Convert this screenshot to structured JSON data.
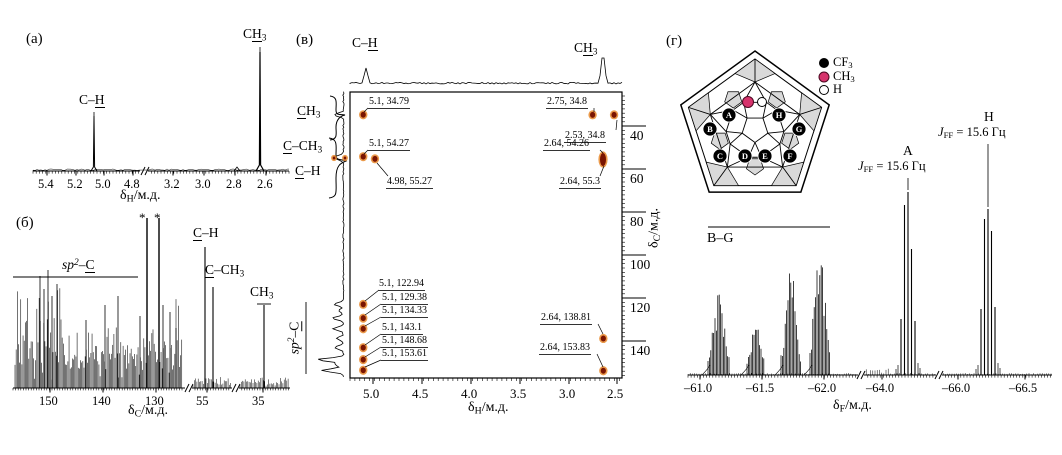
{
  "figure": {
    "panel_a_letter": "(а)",
    "panel_b_letter": "(б)",
    "panel_v_letter": "(в)",
    "panel_g_letter": "(г)"
  },
  "labels": {
    "delta_H": [
      [
        "δ"
      ],
      [
        "H",
        "s"
      ],
      [
        "/м.д."
      ]
    ],
    "delta_C": [
      [
        "δ"
      ],
      [
        "C",
        "s"
      ],
      [
        "/м.д."
      ]
    ],
    "delta_F": [
      [
        "δ"
      ],
      [
        "F",
        "s"
      ],
      [
        "/м.д."
      ]
    ],
    "a_CH": [
      [
        "C–"
      ],
      [
        "H",
        "u"
      ]
    ],
    "a_CH3": [
      [
        "C"
      ],
      [
        "H",
        "u"
      ],
      [
        "3",
        "s"
      ]
    ],
    "b_sp2C": [
      [
        "sp",
        "i"
      ],
      [
        "2",
        "p i"
      ],
      [
        "–"
      ],
      [
        "C",
        "u"
      ]
    ],
    "b_CH": [
      [
        "C",
        "u"
      ],
      [
        "–H"
      ]
    ],
    "b_CCH3": [
      [
        "C",
        "u"
      ],
      [
        "–CH"
      ],
      [
        "3",
        "s"
      ]
    ],
    "b_CH3": [
      [
        "CH"
      ],
      [
        "3",
        "s"
      ]
    ],
    "star": "*",
    "v_top_CH": [
      [
        "C–"
      ],
      [
        "H",
        "u"
      ]
    ],
    "v_top_CH3": [
      [
        "C"
      ],
      [
        "H",
        "u"
      ],
      [
        "3",
        "s"
      ]
    ],
    "v_left_CH3": [
      [
        "C",
        "u"
      ],
      [
        "H"
      ],
      [
        "3",
        "s"
      ]
    ],
    "v_left_CCH3": [
      [
        "C",
        "u"
      ],
      [
        "–CH"
      ],
      [
        "3",
        "s"
      ]
    ],
    "v_left_CH": [
      [
        "C",
        "u"
      ],
      [
        "–H"
      ]
    ],
    "v_sp2C": [
      [
        "sp",
        "i"
      ],
      [
        "2",
        "p i"
      ],
      [
        "–"
      ],
      [
        "C",
        "u"
      ]
    ],
    "legend_cf3": [
      [
        "CF"
      ],
      [
        "3",
        "s"
      ]
    ],
    "legend_ch3": [
      [
        "CH"
      ],
      [
        "3",
        "s"
      ]
    ],
    "legend_h": [
      [
        "H"
      ]
    ],
    "g_BG": "B–G",
    "g_A": "A",
    "g_H": "H",
    "g_J": [
      [
        "J",
        "i"
      ],
      [
        "FF",
        "s"
      ],
      [
        " = 15.6 Гц"
      ]
    ]
  },
  "colors": {
    "ink": "#000000",
    "cross_peak_core": "#7a1502",
    "cross_peak_halo": "#e8882a",
    "ch3_pink": "#d6336c",
    "shade_gray": "#d9d9d9"
  },
  "schlegel": {
    "sites": [
      {
        "label": "A"
      },
      {
        "label": "B"
      },
      {
        "label": "C"
      },
      {
        "label": "D"
      },
      {
        "label": "E"
      },
      {
        "label": "F"
      },
      {
        "label": "G"
      },
      {
        "label": "H"
      }
    ],
    "legend": [
      {
        "marker": "black-dot",
        "text": "CF3"
      },
      {
        "marker": "pink-dot",
        "text": "CH3"
      },
      {
        "marker": "white-dot",
        "text": "H"
      }
    ]
  },
  "chart_data": [
    {
      "id": "a",
      "type": "line",
      "title": "1H NMR spectrum",
      "xlabel": "δH/м.д.",
      "x_ticks": [
        5.4,
        5.2,
        5.0,
        4.8,
        3.2,
        3.0,
        2.8,
        2.6
      ],
      "x_tick_labels": [
        "5.4",
        "5.2",
        "5.0",
        "4.8",
        "3.2",
        "3.0",
        "2.8",
        "2.6"
      ],
      "x_axis_reversed": true,
      "axis_breaks": [
        [
          4.75,
          3.35
        ]
      ],
      "peaks": [
        {
          "x": 5.07,
          "label": "C–H",
          "rel_height": 0.47
        },
        {
          "x": 2.64,
          "label": "CH3",
          "rel_height": 1.0
        }
      ]
    },
    {
      "id": "b",
      "type": "line",
      "title": "13C NMR spectrum",
      "xlabel": "δC/м.д.",
      "x_ticks": [
        150,
        140,
        130,
        55,
        35
      ],
      "x_tick_labels": [
        "150",
        "140",
        "130",
        "55",
        "35"
      ],
      "x_axis_reversed": true,
      "axis_breaks": [
        [
          127,
          58
        ],
        [
          50.5,
          39.5
        ]
      ],
      "regions": [
        {
          "label": "sp2–C",
          "from": 157,
          "to": 128
        }
      ],
      "peaks": [
        {
          "x": 131.8,
          "label": "*",
          "rel_height": 1.0
        },
        {
          "x": 129.5,
          "label": "*",
          "rel_height": 1.0
        },
        {
          "x": 55.3,
          "label": "C–H",
          "rel_height": 0.83
        },
        {
          "x": 54.3,
          "label": "C–CH3",
          "rel_height": 0.59
        },
        {
          "x": 34.8,
          "label": "CH3",
          "rel_height": 0.49
        }
      ]
    },
    {
      "id": "v",
      "type": "2d-nmr",
      "title": "2D 1H–13C correlation spectrum",
      "xlabel": "δH/м.д.",
      "ylabel": "δC/м.д.",
      "x_ticks": [
        5.0,
        4.5,
        4.0,
        3.5,
        3.0,
        2.5
      ],
      "x_tick_labels": [
        "5.0",
        "4.5",
        "4.0",
        "3.5",
        "3.0",
        "2.5"
      ],
      "y_ticks": [
        40,
        60,
        80,
        100,
        120,
        140
      ],
      "y_tick_labels": [
        "40",
        "60",
        "80",
        "100",
        "120",
        "140"
      ],
      "x_axis_reversed": true,
      "y_axis_reversed": false,
      "cross_peaks": [
        {
          "h": 5.1,
          "c": 34.79,
          "t": "5.1, 34.79"
        },
        {
          "h": 2.75,
          "c": 34.8,
          "t": "2.75, 34.8"
        },
        {
          "h": 2.53,
          "c": 34.8,
          "t": "2.53, 34.8"
        },
        {
          "h": 5.1,
          "c": 54.27,
          "t": "5.1, 54.27"
        },
        {
          "h": 2.64,
          "c": 54.26,
          "t": "2.64, 54.26"
        },
        {
          "h": 4.98,
          "c": 55.27,
          "t": "4.98, 55.27"
        },
        {
          "h": 2.64,
          "c": 55.3,
          "t": "2.64, 55.3"
        },
        {
          "h": 5.1,
          "c": 122.94,
          "t": "5.1, 122.94"
        },
        {
          "h": 5.1,
          "c": 129.38,
          "t": "5.1, 129.38"
        },
        {
          "h": 5.1,
          "c": 134.33,
          "t": "5.1, 134.33"
        },
        {
          "h": 5.1,
          "c": 143.1,
          "t": "5.1, 143.1"
        },
        {
          "h": 5.1,
          "c": 148.68,
          "t": "5.1, 148.68"
        },
        {
          "h": 5.1,
          "c": 153.61,
          "t": "5.1, 153.61"
        },
        {
          "h": 2.64,
          "c": 138.81,
          "t": "2.64, 138.81"
        },
        {
          "h": 2.64,
          "c": 153.83,
          "t": "2.64, 153.83"
        }
      ]
    },
    {
      "id": "g",
      "type": "line",
      "title": "19F NMR spectrum",
      "xlabel": "δF/м.д.",
      "x_ticks": [
        -61.0,
        -61.5,
        -62.0,
        -64.0,
        -66.0,
        -66.5
      ],
      "x_tick_labels": [
        "–61.0",
        "–61.5",
        "–62.0",
        "–64.0",
        "–66.0",
        "–66.5"
      ],
      "x_axis_reversed": false,
      "axis_breaks": [
        [
          -62.3,
          -63.8
        ],
        [
          -64.6,
          -65.8
        ]
      ],
      "multiplets": [
        {
          "label": "B–G",
          "x": [
            -61.15,
            -61.45,
            -61.73,
            -61.95
          ]
        },
        {
          "label": "A",
          "x": -64.2,
          "J": "JFF = 15.6 Гц"
        },
        {
          "label": "H",
          "x": -66.25,
          "J": "JFF = 15.6 Гц"
        }
      ]
    }
  ]
}
